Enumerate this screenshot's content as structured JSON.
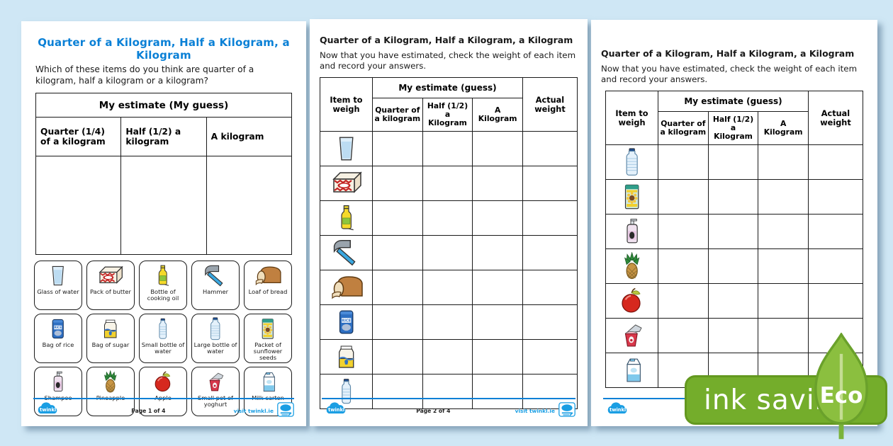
{
  "background_color": "#cfe7f5",
  "colors": {
    "accent_blue": "#0a80d6",
    "twinkl_blue": "#1a9ee3",
    "eco_green": "#74ad2b",
    "leaf_green": "#8bbf3f"
  },
  "eco": {
    "label": "ink saving",
    "eco_label": "Eco"
  },
  "pages": [
    {
      "title": "Quarter of a Kilogram, Half a Kilogram, a Kilogram",
      "intro": "Which of these items do you think are quarter of a kilogram, half a kilogram or a kilogram?",
      "table": {
        "header": "My estimate (My guess)",
        "columns": [
          "Quarter (1/4) of a kilogram",
          "Half (1/2) a kilogram",
          "A kilogram"
        ]
      },
      "cards": [
        {
          "icon": "glass-of-water",
          "label": "Glass of water"
        },
        {
          "icon": "pack-of-butter",
          "label": "Pack of butter"
        },
        {
          "icon": "cooking-oil",
          "label": "Bottle of cooking oil"
        },
        {
          "icon": "hammer",
          "label": "Hammer"
        },
        {
          "icon": "loaf-of-bread",
          "label": "Loaf of bread"
        },
        {
          "icon": "bag-of-rice",
          "label": "Bag of rice"
        },
        {
          "icon": "bag-of-sugar",
          "label": "Bag of sugar"
        },
        {
          "icon": "small-bottle-of-water",
          "label": "Small bottle of water"
        },
        {
          "icon": "large-bottle-of-water",
          "label": "Large bottle of water"
        },
        {
          "icon": "sunflower-seeds",
          "label": "Packet of sunflower seeds"
        },
        {
          "icon": "shampoo",
          "label": "Shampoo"
        },
        {
          "icon": "pineapple",
          "label": "Pineapple"
        },
        {
          "icon": "apple",
          "label": "Apple"
        },
        {
          "icon": "yoghurt",
          "label": "Small pot of yoghurt"
        },
        {
          "icon": "milk-carton",
          "label": "Milk carton"
        }
      ],
      "footer": {
        "brand": "twinkl",
        "page_label": "Page 1 of 4",
        "visit": "visit twinkl.ie"
      }
    },
    {
      "title": "Quarter of a Kilogram, Half a Kilogram, a Kilogram",
      "intro": "Now that you have estimated, check the weight of each item and record your answers.",
      "table": {
        "item_col": "Item to weigh",
        "estimate_header": "My estimate (guess)",
        "columns": [
          "Quarter of a kilogram",
          "Half (1/2) a Kilogram",
          "A Kilogram"
        ],
        "actual_col": "Actual weight"
      },
      "items": [
        "glass-of-water",
        "pack-of-butter",
        "cooking-oil",
        "hammer",
        "loaf-of-bread",
        "bag-of-rice",
        "bag-of-sugar",
        "small-bottle-of-water"
      ],
      "footer": {
        "brand": "twinkl",
        "page_label": "Page 2 of 4",
        "visit": "visit twinkl.ie"
      }
    },
    {
      "title": "Quarter of a Kilogram, Half a Kilogram, a Kilogram",
      "intro": "Now that you have estimated, check the weight of each item and record your answers.",
      "table": {
        "item_col": "Item to weigh",
        "estimate_header": "My estimate (guess)",
        "columns": [
          "Quarter of a kilogram",
          "Half (1/2) a Kilogram",
          "A Kilogram"
        ],
        "actual_col": "Actual weight"
      },
      "items": [
        "large-bottle-of-water",
        "sunflower-seeds",
        "shampoo",
        "pineapple",
        "apple",
        "yoghurt",
        "milk-carton"
      ],
      "footer": {
        "brand": "twinkl",
        "page_label": "",
        "visit": ""
      }
    }
  ]
}
